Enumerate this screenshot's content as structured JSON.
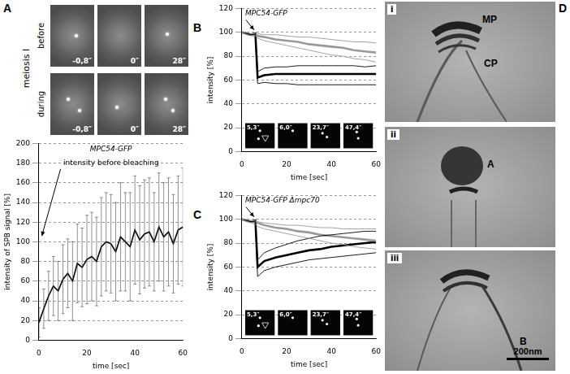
{
  "figure": {
    "panels": [
      "A",
      "B",
      "C",
      "D"
    ],
    "A": {
      "side_label": "meiosis I",
      "rows": [
        {
          "label": "before",
          "times": [
            "-0,8″",
            "0″",
            "28″"
          ]
        },
        {
          "label": "during",
          "times": [
            "-0,8″",
            "0″",
            "28″"
          ]
        }
      ]
    },
    "B": {
      "inset_times": [
        "5,3″",
        "6,0″",
        "23,7″",
        "47,4″"
      ]
    },
    "C": {
      "inset_times": [
        "5,3″",
        "6,0″",
        "23,7″",
        "47,4″"
      ]
    },
    "D": {
      "images": [
        {
          "label": "i",
          "annotations": [
            "MP",
            "CP"
          ]
        },
        {
          "label": "ii",
          "annotations": [
            "A"
          ]
        },
        {
          "label": "iii",
          "annotations": [
            "B"
          ]
        }
      ],
      "scale_bar": "200nm"
    }
  },
  "chart_data": [
    {
      "type": "line",
      "title": "MPC54-GFP",
      "annotation": "intensity before bleaching",
      "x_label": "time [sec]",
      "y_label": "intensity of SPB signal [%]",
      "color": "#000000",
      "x": [
        0,
        2,
        4,
        6,
        8,
        10,
        12,
        14,
        16,
        18,
        20,
        22,
        24,
        26,
        28,
        30,
        32,
        34,
        36,
        38,
        40,
        42,
        44,
        46,
        48,
        50,
        52,
        54,
        56,
        58,
        60
      ],
      "values": [
        18,
        32,
        45,
        55,
        50,
        62,
        68,
        60,
        78,
        74,
        82,
        85,
        80,
        95,
        100,
        98,
        90,
        105,
        100,
        95,
        112,
        102,
        108,
        110,
        100,
        115,
        105,
        110,
        98,
        112,
        115
      ],
      "errors": [
        15,
        20,
        25,
        30,
        30,
        35,
        35,
        40,
        40,
        40,
        45,
        45,
        45,
        50,
        50,
        50,
        50,
        55,
        50,
        55,
        55,
        55,
        55,
        55,
        50,
        55,
        55,
        55,
        50,
        55,
        60
      ],
      "xlim": [
        0,
        60
      ],
      "xticks": [
        0,
        20,
        40,
        60
      ],
      "ylim": [
        0,
        200
      ],
      "yticks": [
        0,
        20,
        40,
        60,
        80,
        100,
        120,
        140,
        160,
        180,
        200
      ],
      "grid": true
    },
    {
      "type": "line",
      "title": "MPC54-GFP",
      "x_label": "time [sec]",
      "y_label": "intensity [%]",
      "x": [
        0,
        2,
        4,
        6,
        7,
        10,
        15,
        20,
        25,
        30,
        35,
        40,
        45,
        50,
        55,
        60
      ],
      "series": [
        {
          "color": "#999999",
          "line_style": "thin",
          "values": [
            100,
            100,
            99,
            99,
            99,
            98,
            98,
            97,
            96,
            96,
            95,
            94,
            93,
            92,
            92,
            91
          ]
        },
        {
          "color": "#999999",
          "line_style": "thin",
          "values": [
            100,
            98,
            97,
            97,
            95,
            93,
            91,
            89,
            87,
            85,
            83,
            81,
            80,
            78,
            77,
            75
          ]
        },
        {
          "color": "#000000",
          "line_style": "thin",
          "values": [
            100,
            99,
            98,
            99,
            67,
            70,
            71,
            71,
            72,
            72,
            72,
            72,
            72,
            72,
            71,
            72
          ]
        },
        {
          "color": "#000000",
          "line_style": "thin",
          "values": [
            100,
            99,
            98,
            98,
            57,
            58,
            57,
            57,
            56,
            56,
            56,
            56,
            56,
            56,
            56,
            56
          ]
        },
        {
          "color": "#999999",
          "line_style": "thick",
          "values": [
            100,
            99,
            98,
            98,
            97,
            96,
            94,
            93,
            92,
            90,
            89,
            88,
            87,
            85,
            84,
            83
          ]
        },
        {
          "color": "#000000",
          "line_style": "thick",
          "values": [
            100,
            99,
            98,
            99,
            62,
            64,
            65,
            65,
            65,
            65,
            65,
            65,
            65,
            65,
            65,
            65
          ]
        }
      ],
      "xlim": [
        0,
        60
      ],
      "xticks": [
        0,
        20,
        40,
        60
      ],
      "ylim": [
        0,
        120
      ],
      "yticks": [
        0,
        20,
        40,
        60,
        80,
        100,
        120
      ],
      "grid": true
    },
    {
      "type": "line",
      "title": "MPC54-GFP Δmpc70",
      "x_label": "time [sec]",
      "y_label": "intensity [%]",
      "x": [
        0,
        2,
        4,
        6,
        7,
        10,
        15,
        20,
        25,
        30,
        35,
        40,
        45,
        50,
        55,
        60
      ],
      "series": [
        {
          "color": "#999999",
          "line_style": "thin",
          "values": [
            100,
            100,
            99,
            99,
            98,
            97,
            96,
            95,
            95,
            94,
            93,
            93,
            92,
            92,
            92,
            92
          ]
        },
        {
          "color": "#999999",
          "line_style": "thin",
          "values": [
            100,
            98,
            97,
            96,
            94,
            92,
            90,
            88,
            86,
            84,
            82,
            80,
            79,
            77,
            76,
            75
          ]
        },
        {
          "color": "#000000",
          "line_style": "thin",
          "values": [
            100,
            99,
            98,
            99,
            66,
            72,
            76,
            79,
            82,
            84,
            86,
            87,
            88,
            89,
            90,
            90
          ]
        },
        {
          "color": "#000000",
          "line_style": "thin",
          "values": [
            100,
            99,
            98,
            98,
            52,
            57,
            60,
            62,
            64,
            66,
            67,
            68,
            69,
            70,
            71,
            72
          ]
        },
        {
          "color": "#999999",
          "line_style": "thick",
          "values": [
            100,
            99,
            98,
            98,
            97,
            95,
            93,
            92,
            90,
            89,
            87,
            86,
            85,
            84,
            83,
            82
          ]
        },
        {
          "color": "#000000",
          "line_style": "thick",
          "values": [
            100,
            99,
            98,
            99,
            60,
            65,
            68,
            70,
            72,
            74,
            75,
            77,
            78,
            79,
            80,
            81
          ]
        }
      ],
      "xlim": [
        0,
        60
      ],
      "xticks": [
        0,
        20,
        40,
        60
      ],
      "ylim": [
        0,
        120
      ],
      "yticks": [
        0,
        20,
        40,
        60,
        80,
        100,
        120
      ],
      "grid": true
    }
  ]
}
